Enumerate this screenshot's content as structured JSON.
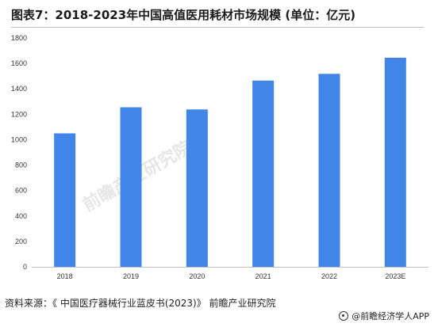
{
  "chart_data": {
    "type": "bar",
    "title": "图表7：2018-2023年中国高值医用耗材市场规模 (单位：亿元)",
    "categories": [
      "2018",
      "2019",
      "2020",
      "2021",
      "2022",
      "2023E"
    ],
    "series": [
      {
        "values": [
          1050,
          1255,
          1238,
          1465,
          1518,
          1645
        ]
      }
    ],
    "ylim": [
      0,
      1800
    ],
    "yticks": [
      0,
      200,
      400,
      600,
      800,
      1000,
      1200,
      1400,
      1600,
      1800
    ],
    "xlabel": "",
    "ylabel": "",
    "grid": false,
    "colors": {
      "bar": "#4285e8"
    }
  },
  "source": "资料来源：《 中国医疗器械行业蓝皮书(2023)》 前瞻产业研究院",
  "brand": "@前瞻经济学人APP",
  "watermark": "前瞻产业研究院",
  "icons": {
    "brand": "circle-logo-icon"
  }
}
